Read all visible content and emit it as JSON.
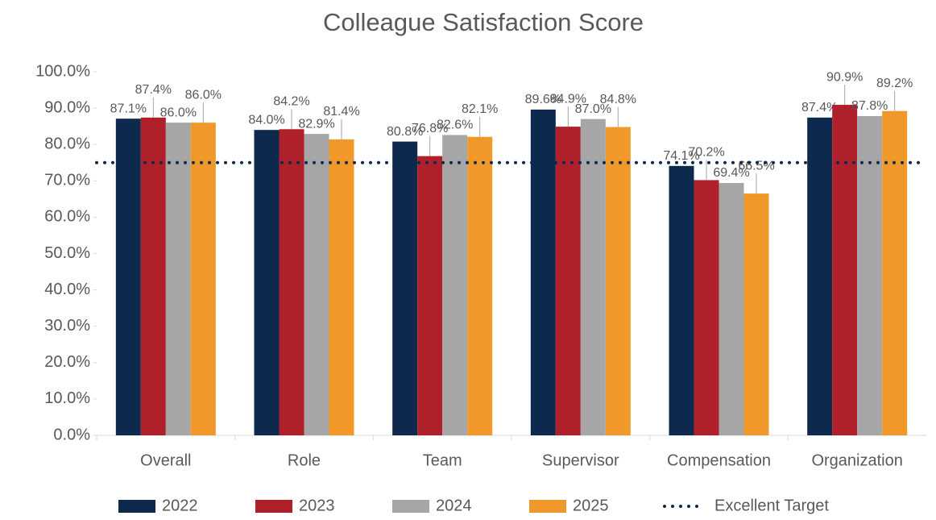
{
  "chart_data": {
    "type": "bar",
    "title": "Colleague Satisfaction Score",
    "categories": [
      "Overall",
      "Role",
      "Team",
      "Supervisor",
      "Compensation",
      "Organization"
    ],
    "series": [
      {
        "name": "2022",
        "color": "#0d2a4e",
        "values": [
          87.1,
          84.0,
          80.8,
          89.6,
          74.1,
          87.4
        ],
        "value_labels": [
          "87.1%",
          "84.0%",
          "80.8%",
          "89.6%",
          "74.1%",
          "87.4%"
        ]
      },
      {
        "name": "2023",
        "color": "#b0202a",
        "values": [
          87.4,
          84.2,
          76.8,
          84.9,
          70.2,
          90.9
        ],
        "value_labels": [
          "87.4%",
          "84.2%",
          "76.8%",
          "84.9%",
          "70.2%",
          "90.9%"
        ]
      },
      {
        "name": "2024",
        "color": "#a6a6a6",
        "values": [
          86.0,
          82.9,
          82.6,
          87.0,
          69.4,
          87.8
        ],
        "value_labels": [
          "86.0%",
          "82.9%",
          "82.6%",
          "87.0%",
          "69.4%",
          "87.8%"
        ]
      },
      {
        "name": "2025",
        "color": "#f0992a",
        "values": [
          86.0,
          81.4,
          82.1,
          84.8,
          66.5,
          89.2
        ],
        "value_labels": [
          "86.0%",
          "81.4%",
          "82.1%",
          "84.8%",
          "66.5%",
          "89.2%"
        ]
      }
    ],
    "target": {
      "name": "Excellent Target",
      "value": 75,
      "color": "#0d2a4e"
    },
    "ylim": [
      0,
      100
    ],
    "yticks": [
      {
        "value": 0,
        "label": "0.0%"
      },
      {
        "value": 10,
        "label": "10.0%"
      },
      {
        "value": 20,
        "label": "20.0%"
      },
      {
        "value": 30,
        "label": "30.0%"
      },
      {
        "value": 40,
        "label": "40.0%"
      },
      {
        "value": 50,
        "label": "50.0%"
      },
      {
        "value": 60,
        "label": "60.0%"
      },
      {
        "value": 70,
        "label": "70.0%"
      },
      {
        "value": 80,
        "label": "80.0%"
      },
      {
        "value": 90,
        "label": "90.0%"
      },
      {
        "value": 100,
        "label": "100.0%"
      }
    ],
    "grid": false,
    "legend": "bottom"
  }
}
